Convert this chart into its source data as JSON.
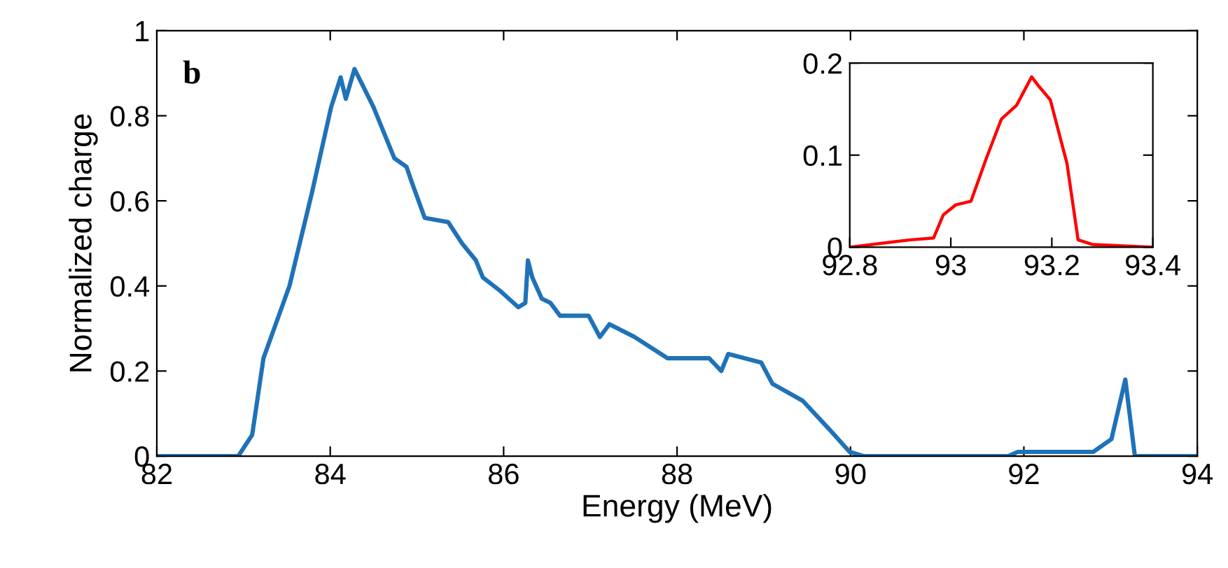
{
  "chart_data": [
    {
      "type": "line",
      "xlabel": "Energy (MeV)",
      "ylabel": "Normalized charge",
      "annotations": [
        "b"
      ],
      "xlim": [
        82,
        94
      ],
      "xticks": [
        82,
        84,
        86,
        88,
        90,
        92,
        94
      ],
      "ylim": [
        0,
        1
      ],
      "yticks": [
        0,
        0.2,
        0.4,
        0.6,
        0.8,
        1
      ],
      "grid": false,
      "legend": false,
      "series": [
        {
          "color": "#1f72b8",
          "x": [
            82,
            82.94,
            83.1,
            83.23,
            83.53,
            83.79,
            84.01,
            84.12,
            84.18,
            84.28,
            84.5,
            84.74,
            84.88,
            84.93,
            85.09,
            85.36,
            85.52,
            85.68,
            85.76,
            85.95,
            86.17,
            86.25,
            86.28,
            86.33,
            86.44,
            86.54,
            86.65,
            86.98,
            87.11,
            87.22,
            87.51,
            87.89,
            88.37,
            88.51,
            88.59,
            88.97,
            89.1,
            89.45,
            89.77,
            89.99,
            90.15,
            91.82,
            91.93,
            92.8,
            93.01,
            93.17,
            93.28,
            94
          ],
          "values": [
            0,
            0,
            0.05,
            0.23,
            0.4,
            0.62,
            0.82,
            0.89,
            0.84,
            0.91,
            0.82,
            0.7,
            0.68,
            0.65,
            0.56,
            0.55,
            0.5,
            0.46,
            0.42,
            0.39,
            0.35,
            0.36,
            0.46,
            0.42,
            0.37,
            0.36,
            0.33,
            0.33,
            0.28,
            0.31,
            0.28,
            0.23,
            0.23,
            0.2,
            0.24,
            0.22,
            0.17,
            0.13,
            0.06,
            0.01,
            0,
            0,
            0.01,
            0.01,
            0.04,
            0.18,
            0,
            0
          ]
        }
      ]
    },
    {
      "type": "line",
      "xlim": [
        92.8,
        93.4
      ],
      "xticks": [
        92.8,
        93,
        93.2,
        93.4
      ],
      "ylim": [
        0,
        0.2
      ],
      "yticks": [
        0,
        0.1,
        0.2
      ],
      "grid": false,
      "legend": false,
      "series": [
        {
          "color": "#ff0000",
          "x": [
            92.8,
            92.92,
            92.966,
            92.985,
            93.01,
            93.04,
            93.07,
            93.1,
            93.13,
            93.16,
            93.174,
            93.197,
            93.23,
            93.252,
            93.28,
            93.4
          ],
          "values": [
            0,
            0.008,
            0.01,
            0.035,
            0.046,
            0.05,
            0.096,
            0.139,
            0.154,
            0.185,
            0.175,
            0.16,
            0.091,
            0.008,
            0.003,
            0
          ]
        }
      ]
    }
  ]
}
